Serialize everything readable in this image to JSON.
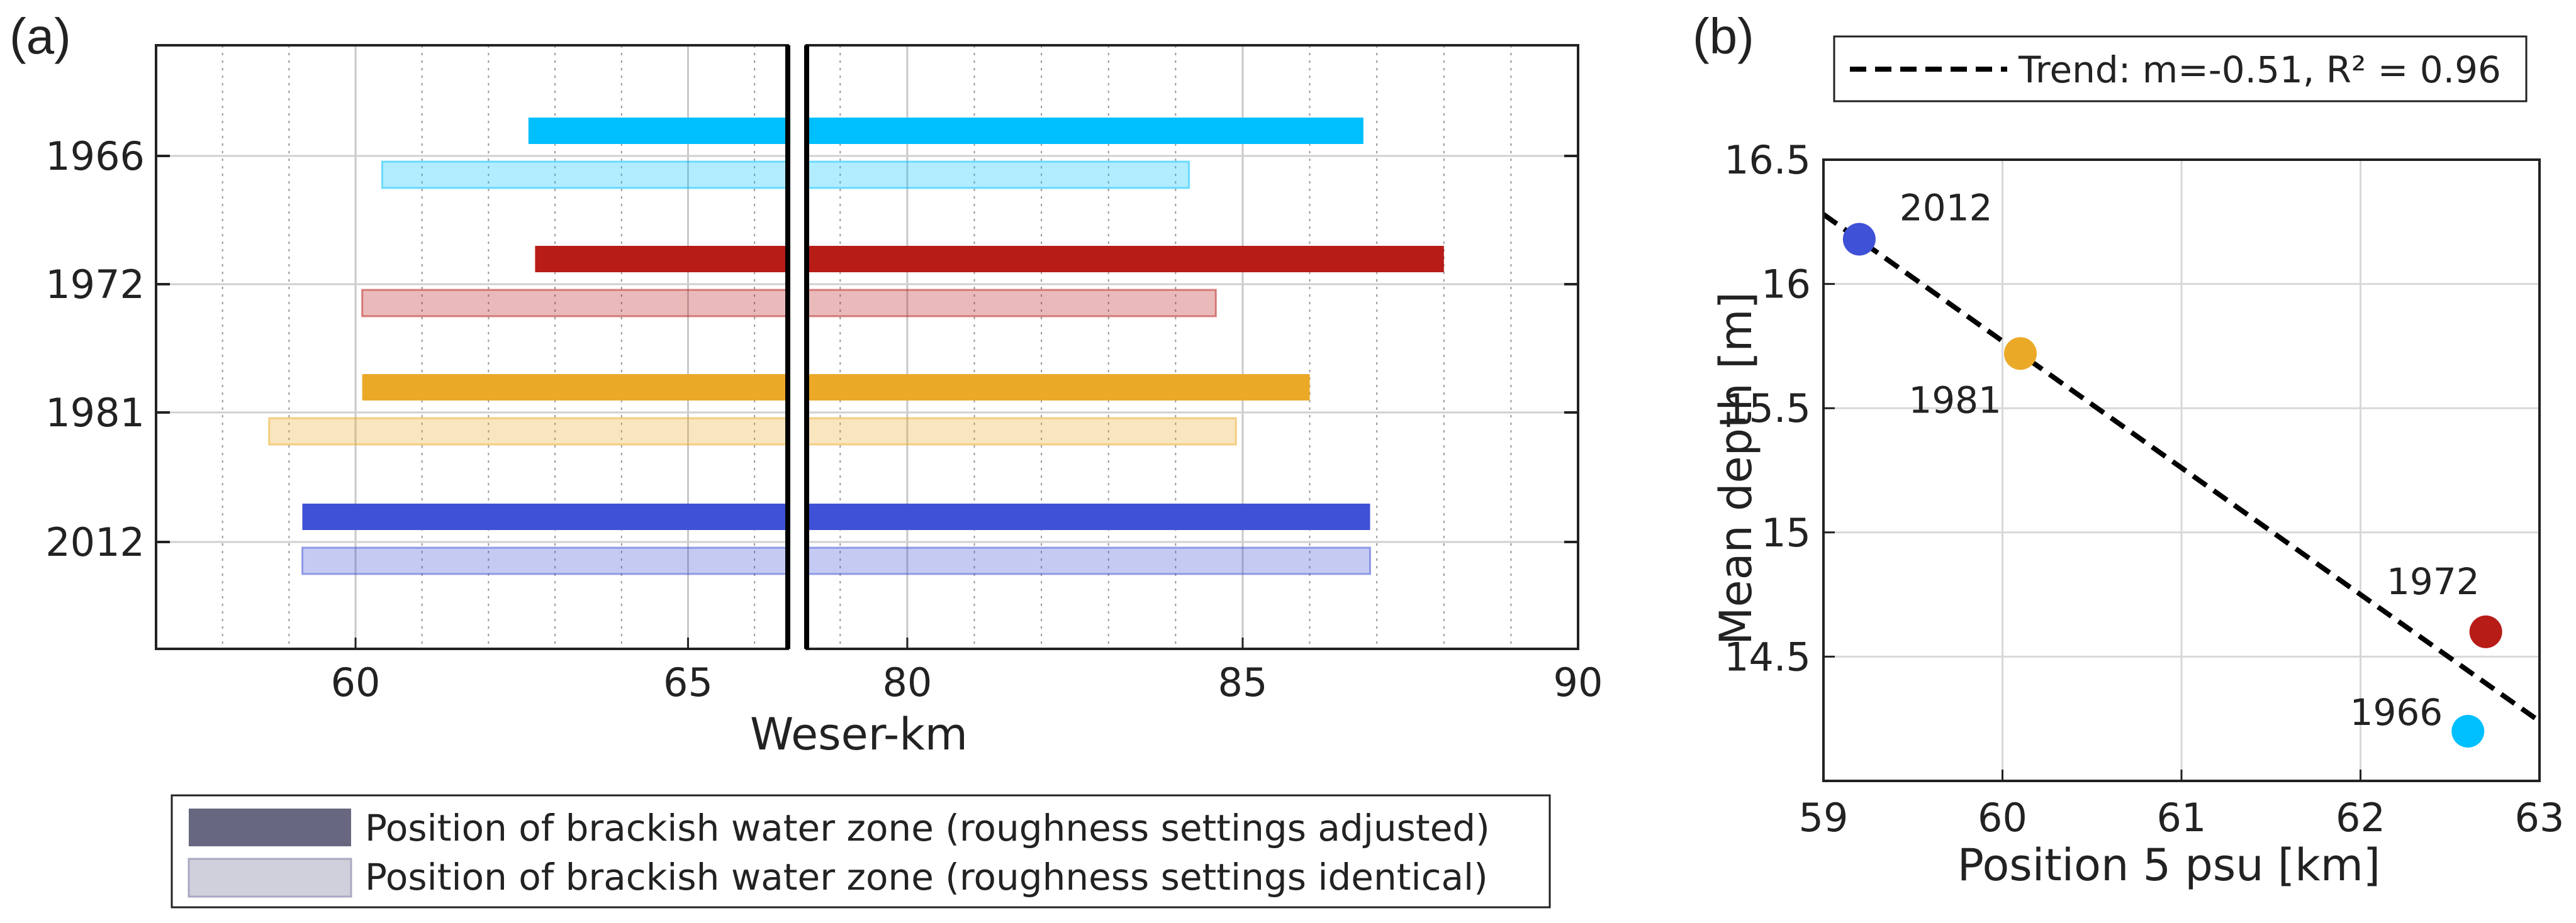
{
  "chart_data": [
    {
      "panel": "(a)",
      "type": "bar",
      "subtype": "horizontal-range-broken-axis",
      "xlabel": "Weser-km",
      "x_broken_axis": {
        "left_segment": [
          57,
          66.5
        ],
        "right_segment": [
          78.5,
          90
        ],
        "left_ticks": [
          "60",
          "65"
        ],
        "right_ticks": [
          "80",
          "85",
          "90"
        ]
      },
      "years": [
        "1966",
        "1972",
        "1981",
        "2012"
      ],
      "legend": [
        {
          "label": "Position of brackish water zone (roughness settings adjusted)",
          "color": "#676780"
        },
        {
          "label": "Position of brackish water zone (roughness settings identical)",
          "color": "#d0d0dc"
        }
      ],
      "grid": "vertical dotted",
      "series": [
        {
          "year": "1966",
          "color": "#00bfff",
          "adjusted": [
            62.6,
            86.8
          ],
          "identical": [
            60.4,
            84.2
          ]
        },
        {
          "year": "1972",
          "color": "#b71c17",
          "adjusted": [
            62.7,
            88.0
          ],
          "identical": [
            60.1,
            84.6
          ]
        },
        {
          "year": "1981",
          "color": "#eba928",
          "adjusted": [
            60.1,
            86.0
          ],
          "identical": [
            58.7,
            84.9
          ]
        },
        {
          "year": "2012",
          "color": "#3f51d6",
          "adjusted": [
            59.2,
            86.9
          ],
          "identical": [
            59.2,
            86.9
          ]
        }
      ]
    },
    {
      "panel": "(b)",
      "type": "scatter",
      "xlabel": "Position 5 psu [km]",
      "ylabel": "Mean depth [m]",
      "xlim": [
        59,
        63
      ],
      "ylim": [
        14,
        16.5
      ],
      "x_ticks": [
        "59",
        "60",
        "61",
        "62",
        "63"
      ],
      "y_ticks": [
        "14.5",
        "15",
        "15.5",
        "16",
        "16.5"
      ],
      "grid": "on",
      "points": [
        {
          "label": "2012",
          "x": 59.2,
          "y": 16.18,
          "color": "#3f51d6"
        },
        {
          "label": "1981",
          "x": 60.1,
          "y": 15.72,
          "color": "#eba928"
        },
        {
          "label": "1972",
          "x": 62.7,
          "y": 14.6,
          "color": "#b71c17"
        },
        {
          "label": "1966",
          "x": 62.6,
          "y": 14.2,
          "color": "#00bfff"
        }
      ],
      "trend": {
        "legend": "Trend: m=-0.51, R² = 0.96",
        "slope": -0.51,
        "style": "dashed",
        "color": "#000000",
        "x": [
          59,
          63
        ],
        "y": [
          16.28,
          14.24
        ]
      }
    }
  ]
}
